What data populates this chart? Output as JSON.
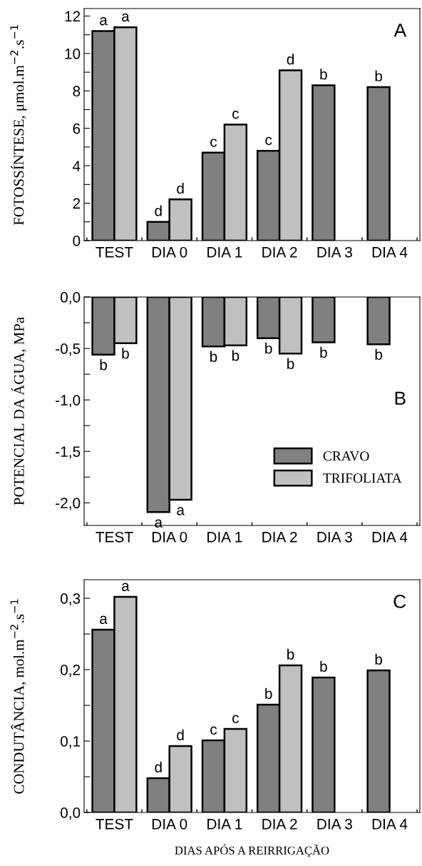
{
  "chart_data": [
    {
      "type": "bar",
      "ylabel": "FOTOSSÍNTESE, μmol.m$^{−2}$.s$^{−1}$",
      "categories": [
        "TEST",
        "DIA 0",
        "DIA 1",
        "DIA 2",
        "DIA 3",
        "DIA 4"
      ],
      "series": [
        {
          "color": "#808080",
          "values": [
            11.2,
            1.0,
            4.7,
            4.8,
            8.3,
            8.2
          ],
          "value_labels": [
            "a",
            "d",
            "c",
            "c",
            "b",
            "b"
          ]
        },
        {
          "color": "#c0c0c0",
          "values": [
            11.4,
            2.2,
            6.2,
            9.1,
            null,
            null
          ],
          "value_labels": [
            "a",
            "d",
            "c",
            "d",
            null,
            null
          ]
        }
      ],
      "ylim": [
        0,
        12.4
      ],
      "yticks": [
        0,
        {
          "value": 1,
          "label": null
        },
        2,
        {
          "value": 3,
          "label": null
        },
        4,
        {
          "value": 5,
          "label": null
        },
        6,
        {
          "value": 7,
          "label": null
        },
        8,
        {
          "value": 9,
          "label": null
        },
        10,
        {
          "value": 11,
          "label": null
        },
        12
      ],
      "annotations": [
        "A"
      ],
      "legend": false,
      "grid": false
    },
    {
      "type": "bar",
      "ylabel": "POTENCIAL DA ÁGUA, MPa",
      "categories": [
        "TEST",
        "DIA 0",
        "DIA 1",
        "DIA 2",
        "DIA 3",
        "DIA 4"
      ],
      "series": [
        {
          "name": "CRAVO",
          "color": "#808080",
          "values": [
            -0.56,
            -2.09,
            -0.48,
            -0.4,
            -0.44,
            -0.46
          ],
          "value_labels": [
            "b",
            "a",
            "b",
            "b",
            "b",
            "b"
          ]
        },
        {
          "name": "TRIFOLIATA",
          "color": "#c0c0c0",
          "values": [
            -0.45,
            -1.97,
            -0.47,
            -0.55,
            null,
            null
          ],
          "value_labels": [
            "b",
            "a",
            "b",
            "b",
            null,
            null
          ]
        }
      ],
      "ylim": [
        -2.22,
        0
      ],
      "yticks": [
        {
          "value": 0,
          "label": "0,0"
        },
        {
          "value": -0.25,
          "label": null
        },
        {
          "value": -0.5,
          "label": "-0,5"
        },
        {
          "value": -0.75,
          "label": null
        },
        {
          "value": -1.0,
          "label": "-1,0"
        },
        {
          "value": -1.25,
          "label": null
        },
        {
          "value": -1.5,
          "label": "-1,5"
        },
        {
          "value": -1.75,
          "label": null
        },
        {
          "value": -2.0,
          "label": "-2,0"
        }
      ],
      "annotations": [
        "B"
      ],
      "legend": "center right",
      "grid": false
    },
    {
      "type": "bar",
      "ylabel": "CONDUTÂNCIA, mol.m$^{−2}$.s$^{−1}$",
      "xlabel": "DIAS APÓS A REIRRIGAÇÃO",
      "categories": [
        "TEST",
        "DIA 0",
        "DIA 1",
        "DIA 2",
        "DIA 3",
        "DIA 4"
      ],
      "series": [
        {
          "color": "#808080",
          "values": [
            0.256,
            0.048,
            0.101,
            0.151,
            0.189,
            0.199
          ],
          "value_labels": [
            "a",
            "d",
            "c",
            "b",
            "b",
            "b"
          ]
        },
        {
          "color": "#c0c0c0",
          "values": [
            0.302,
            0.093,
            0.117,
            0.206,
            null,
            null
          ],
          "value_labels": [
            "a",
            "d",
            "c",
            "b",
            null,
            null
          ]
        }
      ],
      "ylim": [
        0,
        0.326
      ],
      "yticks": [
        {
          "value": 0,
          "label": "0,0"
        },
        {
          "value": 0.05,
          "label": null
        },
        {
          "value": 0.1,
          "label": "0,1"
        },
        {
          "value": 0.15,
          "label": null
        },
        {
          "value": 0.2,
          "label": "0,2"
        },
        {
          "value": 0.25,
          "label": null
        },
        {
          "value": 0.3,
          "label": "0,3"
        }
      ],
      "annotations": [
        "C"
      ],
      "legend": false,
      "grid": false
    }
  ]
}
